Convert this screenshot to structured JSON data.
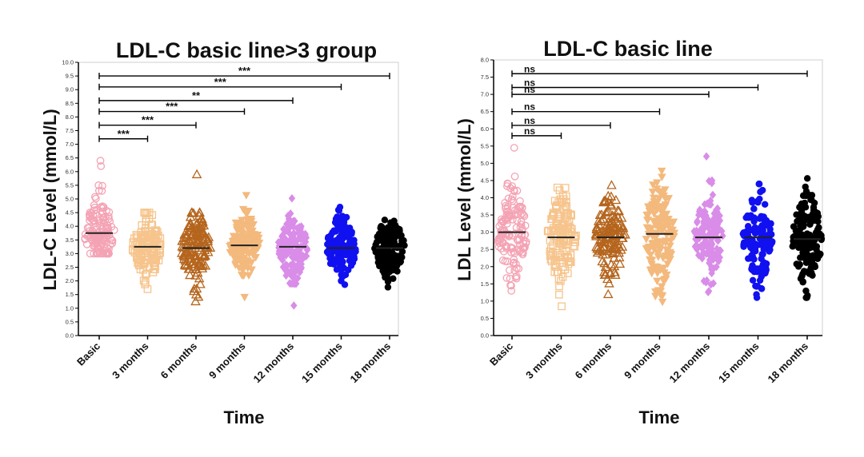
{
  "chart_data": [
    {
      "type": "scatter",
      "title": "LDL-C basic line>3 group",
      "xlabel": "Time",
      "ylabel": "LDL-C Level (mmol/L)",
      "ylim": [
        0,
        10
      ],
      "ytick_step": 0.5,
      "ytick_decimals": 1,
      "grid": false,
      "categories": [
        "Basic",
        "3 months",
        "6 months",
        "9 months",
        "12 months",
        "15 months",
        "18 months"
      ],
      "series": [
        {
          "name": "Basic",
          "color": "#f4a3b4",
          "marker": "circle-open",
          "median": 3.75,
          "min": 3.0,
          "max": 6.4,
          "outliers": [
            6.4,
            6.2,
            5.5,
            5.3
          ]
        },
        {
          "name": "3 months",
          "color": "#f6c48c",
          "marker": "square-open",
          "median": 3.25,
          "min": 1.7,
          "max": 4.5,
          "outliers": []
        },
        {
          "name": "6 months",
          "color": "#b5651d",
          "marker": "triangle-open",
          "median": 3.2,
          "min": 1.3,
          "max": 4.5,
          "outliers": [
            5.9,
            1.5,
            1.25
          ]
        },
        {
          "name": "9 months",
          "color": "#f3b97d",
          "marker": "triangle-down",
          "median": 3.3,
          "min": 2.2,
          "max": 5.3,
          "outliers": [
            1.4
          ]
        },
        {
          "name": "12 months",
          "color": "#d98ce8",
          "marker": "diamond",
          "median": 3.25,
          "min": 1.9,
          "max": 5.2,
          "outliers": [
            1.1
          ]
        },
        {
          "name": "15 months",
          "color": "#1010f0",
          "marker": "circle",
          "median": 3.2,
          "min": 1.7,
          "max": 4.7,
          "outliers": []
        },
        {
          "name": "18 months",
          "color": "#000000",
          "marker": "circle",
          "median": 3.2,
          "min": 1.7,
          "max": 4.7,
          "outliers": []
        }
      ],
      "comparisons": [
        {
          "from": "Basic",
          "to": "3 months",
          "label": "***",
          "y": 7.2
        },
        {
          "from": "Basic",
          "to": "6 months",
          "label": "***",
          "y": 7.7
        },
        {
          "from": "Basic",
          "to": "9 months",
          "label": "***",
          "y": 8.2
        },
        {
          "from": "Basic",
          "to": "12 months",
          "label": "**",
          "y": 8.6
        },
        {
          "from": "Basic",
          "to": "15 months",
          "label": "***",
          "y": 9.1
        },
        {
          "from": "Basic",
          "to": "18 months",
          "label": "***",
          "y": 9.5
        }
      ]
    },
    {
      "type": "scatter",
      "title": "LDL-C basic line",
      "xlabel": "Time",
      "ylabel": "LDL Level (mmol/L)",
      "ylim": [
        0,
        8
      ],
      "ytick_step": 0.5,
      "ytick_decimals": 1,
      "grid": false,
      "categories": [
        "Basic",
        "3 months",
        "6 months",
        "9 months",
        "12 months",
        "15 months",
        "18 months"
      ],
      "series": [
        {
          "name": "Basic",
          "color": "#f4a3b4",
          "marker": "circle-open",
          "median": 3.0,
          "min": 1.3,
          "max": 4.9,
          "outliers": [
            5.45
          ]
        },
        {
          "name": "3 months",
          "color": "#f6c48c",
          "marker": "square-open",
          "median": 2.85,
          "min": 1.1,
          "max": 4.4,
          "outliers": [
            0.85
          ]
        },
        {
          "name": "6 months",
          "color": "#b5651d",
          "marker": "triangle-open",
          "median": 2.85,
          "min": 1.2,
          "max": 4.5,
          "outliers": []
        },
        {
          "name": "9 months",
          "color": "#f3b97d",
          "marker": "triangle-down",
          "median": 2.95,
          "min": 0.9,
          "max": 5.2,
          "outliers": []
        },
        {
          "name": "12 months",
          "color": "#d98ce8",
          "marker": "diamond",
          "median": 2.85,
          "min": 1.1,
          "max": 4.5,
          "outliers": [
            5.2
          ]
        },
        {
          "name": "15 months",
          "color": "#1010f0",
          "marker": "circle",
          "median": 2.85,
          "min": 0.95,
          "max": 4.4,
          "outliers": []
        },
        {
          "name": "18 months",
          "color": "#000000",
          "marker": "circle",
          "median": 2.8,
          "min": 1.1,
          "max": 4.6,
          "outliers": []
        }
      ],
      "comparisons": [
        {
          "from": "Basic",
          "to": "3 months",
          "label": "ns",
          "y": 5.8
        },
        {
          "from": "Basic",
          "to": "6 months",
          "label": "ns",
          "y": 6.1
        },
        {
          "from": "Basic",
          "to": "9 months",
          "label": "ns",
          "y": 6.5
        },
        {
          "from": "Basic",
          "to": "12 months",
          "label": "ns",
          "y": 7.0
        },
        {
          "from": "Basic",
          "to": "15 months",
          "label": "ns",
          "y": 7.2
        },
        {
          "from": "Basic",
          "to": "18 months",
          "label": "ns",
          "y": 7.6
        }
      ]
    }
  ]
}
